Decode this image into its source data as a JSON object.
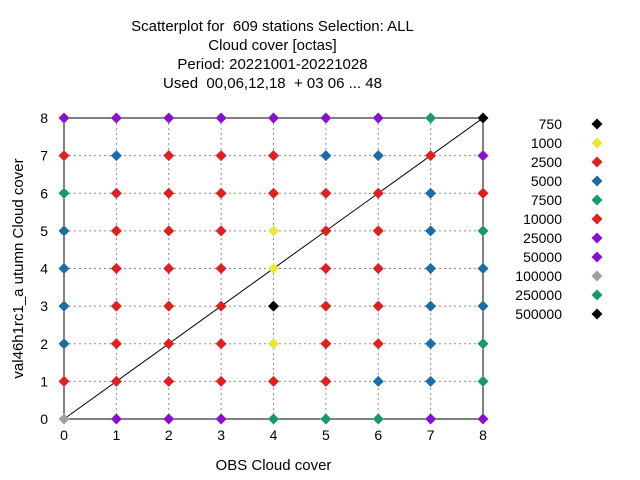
{
  "title_lines": [
    "Scatterplot for  609 stations Selection: ALL",
    "Cloud cover [octas]",
    "Period: 20221001-20221028",
    "Used  00,06,12,18  + 03 06 ... 48"
  ],
  "chart_data": {
    "type": "scatter",
    "xlabel": "OBS Cloud cover",
    "ylabel": "val46h1rc1_a utumn Cloud cover",
    "xlim": [
      0,
      8
    ],
    "ylim": [
      0,
      8
    ],
    "x_ticks": [
      "0",
      "1",
      "2",
      "3",
      "4",
      "5",
      "6",
      "7",
      "8"
    ],
    "y_ticks": [
      "0",
      "1",
      "2",
      "3",
      "4",
      "5",
      "6",
      "7",
      "8"
    ],
    "grid": true,
    "diagonal_reference_line": true,
    "legend_position": "right",
    "legend": [
      {
        "label": "750",
        "color": "#000000"
      },
      {
        "label": "1000",
        "color": "#ece63c"
      },
      {
        "label": "2500",
        "color": "#e02020"
      },
      {
        "label": "5000",
        "color": "#1a6ea8"
      },
      {
        "label": "7500",
        "color": "#159a6a"
      },
      {
        "label": "10000",
        "color": "#e02020"
      },
      {
        "label": "25000",
        "color": "#8a10d0"
      },
      {
        "label": "50000",
        "color": "#8a10d0"
      },
      {
        "label": "100000",
        "color": "#a0a0a0"
      },
      {
        "label": "250000",
        "color": "#159a6a"
      },
      {
        "label": "500000",
        "color": "#000000"
      }
    ],
    "points": [
      {
        "x": 0,
        "y": 8,
        "c": "#8a10d0"
      },
      {
        "x": 1,
        "y": 8,
        "c": "#8a10d0"
      },
      {
        "x": 2,
        "y": 8,
        "c": "#8a10d0"
      },
      {
        "x": 3,
        "y": 8,
        "c": "#8a10d0"
      },
      {
        "x": 4,
        "y": 8,
        "c": "#8a10d0"
      },
      {
        "x": 5,
        "y": 8,
        "c": "#8a10d0"
      },
      {
        "x": 6,
        "y": 8,
        "c": "#8a10d0"
      },
      {
        "x": 7,
        "y": 8,
        "c": "#159a6a"
      },
      {
        "x": 8,
        "y": 8,
        "c": "#000000"
      },
      {
        "x": 0,
        "y": 7,
        "c": "#e02020"
      },
      {
        "x": 1,
        "y": 7,
        "c": "#1a6ea8"
      },
      {
        "x": 2,
        "y": 7,
        "c": "#e02020"
      },
      {
        "x": 3,
        "y": 7,
        "c": "#e02020"
      },
      {
        "x": 4,
        "y": 7,
        "c": "#e02020"
      },
      {
        "x": 5,
        "y": 7,
        "c": "#1a6ea8"
      },
      {
        "x": 6,
        "y": 7,
        "c": "#1a6ea8"
      },
      {
        "x": 7,
        "y": 7,
        "c": "#e02020"
      },
      {
        "x": 8,
        "y": 7,
        "c": "#8a10d0"
      },
      {
        "x": 0,
        "y": 6,
        "c": "#159a6a"
      },
      {
        "x": 1,
        "y": 6,
        "c": "#e02020"
      },
      {
        "x": 2,
        "y": 6,
        "c": "#e02020"
      },
      {
        "x": 3,
        "y": 6,
        "c": "#e02020"
      },
      {
        "x": 4,
        "y": 6,
        "c": "#e02020"
      },
      {
        "x": 5,
        "y": 6,
        "c": "#e02020"
      },
      {
        "x": 6,
        "y": 6,
        "c": "#e02020"
      },
      {
        "x": 7,
        "y": 6,
        "c": "#1a6ea8"
      },
      {
        "x": 8,
        "y": 6,
        "c": "#e02020"
      },
      {
        "x": 0,
        "y": 5,
        "c": "#1a6ea8"
      },
      {
        "x": 1,
        "y": 5,
        "c": "#e02020"
      },
      {
        "x": 2,
        "y": 5,
        "c": "#e02020"
      },
      {
        "x": 3,
        "y": 5,
        "c": "#e02020"
      },
      {
        "x": 4,
        "y": 5,
        "c": "#ece63c"
      },
      {
        "x": 5,
        "y": 5,
        "c": "#e02020"
      },
      {
        "x": 6,
        "y": 5,
        "c": "#e02020"
      },
      {
        "x": 7,
        "y": 5,
        "c": "#1a6ea8"
      },
      {
        "x": 8,
        "y": 5,
        "c": "#159a6a"
      },
      {
        "x": 0,
        "y": 4,
        "c": "#1a6ea8"
      },
      {
        "x": 1,
        "y": 4,
        "c": "#e02020"
      },
      {
        "x": 2,
        "y": 4,
        "c": "#e02020"
      },
      {
        "x": 3,
        "y": 4,
        "c": "#e02020"
      },
      {
        "x": 4,
        "y": 4,
        "c": "#ece63c"
      },
      {
        "x": 5,
        "y": 4,
        "c": "#e02020"
      },
      {
        "x": 6,
        "y": 4,
        "c": "#e02020"
      },
      {
        "x": 7,
        "y": 4,
        "c": "#1a6ea8"
      },
      {
        "x": 8,
        "y": 4,
        "c": "#1a6ea8"
      },
      {
        "x": 0,
        "y": 3,
        "c": "#1a6ea8"
      },
      {
        "x": 1,
        "y": 3,
        "c": "#e02020"
      },
      {
        "x": 2,
        "y": 3,
        "c": "#e02020"
      },
      {
        "x": 3,
        "y": 3,
        "c": "#e02020"
      },
      {
        "x": 4,
        "y": 3,
        "c": "#000000"
      },
      {
        "x": 5,
        "y": 3,
        "c": "#e02020"
      },
      {
        "x": 6,
        "y": 3,
        "c": "#e02020"
      },
      {
        "x": 7,
        "y": 3,
        "c": "#1a6ea8"
      },
      {
        "x": 8,
        "y": 3,
        "c": "#1a6ea8"
      },
      {
        "x": 0,
        "y": 2,
        "c": "#1a6ea8"
      },
      {
        "x": 1,
        "y": 2,
        "c": "#e02020"
      },
      {
        "x": 2,
        "y": 2,
        "c": "#e02020"
      },
      {
        "x": 3,
        "y": 2,
        "c": "#e02020"
      },
      {
        "x": 4,
        "y": 2,
        "c": "#ece63c"
      },
      {
        "x": 5,
        "y": 2,
        "c": "#e02020"
      },
      {
        "x": 6,
        "y": 2,
        "c": "#e02020"
      },
      {
        "x": 7,
        "y": 2,
        "c": "#1a6ea8"
      },
      {
        "x": 8,
        "y": 2,
        "c": "#159a6a"
      },
      {
        "x": 0,
        "y": 1,
        "c": "#e02020"
      },
      {
        "x": 1,
        "y": 1,
        "c": "#e02020"
      },
      {
        "x": 2,
        "y": 1,
        "c": "#e02020"
      },
      {
        "x": 3,
        "y": 1,
        "c": "#e02020"
      },
      {
        "x": 4,
        "y": 1,
        "c": "#e02020"
      },
      {
        "x": 5,
        "y": 1,
        "c": "#e02020"
      },
      {
        "x": 6,
        "y": 1,
        "c": "#1a6ea8"
      },
      {
        "x": 7,
        "y": 1,
        "c": "#1a6ea8"
      },
      {
        "x": 8,
        "y": 1,
        "c": "#159a6a"
      },
      {
        "x": 0,
        "y": 0,
        "c": "#a0a0a0"
      },
      {
        "x": 1,
        "y": 0,
        "c": "#8a10d0"
      },
      {
        "x": 2,
        "y": 0,
        "c": "#8a10d0"
      },
      {
        "x": 3,
        "y": 0,
        "c": "#8a10d0"
      },
      {
        "x": 4,
        "y": 0,
        "c": "#159a6a"
      },
      {
        "x": 5,
        "y": 0,
        "c": "#159a6a"
      },
      {
        "x": 6,
        "y": 0,
        "c": "#159a6a"
      },
      {
        "x": 7,
        "y": 0,
        "c": "#8a10d0"
      },
      {
        "x": 8,
        "y": 0,
        "c": "#8a10d0"
      }
    ]
  }
}
